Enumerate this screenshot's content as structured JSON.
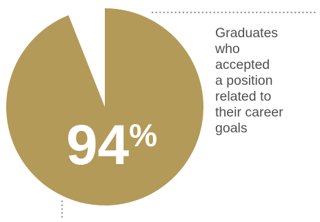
{
  "chart_data": {
    "type": "pie",
    "slices": [
      {
        "label": "Graduates who accepted a position related to their career goals",
        "value": 94,
        "color": "#b49a58"
      },
      {
        "label": "",
        "value": 6,
        "color": "#ffffff"
      }
    ],
    "center_label": {
      "number": "94",
      "unit": "%"
    },
    "caption": "Graduates\nwho\naccepted\na position\nrelated to\ntheir career\ngoals"
  },
  "colors": {
    "slice": "#b49a58",
    "text": "#4f4f4f",
    "leader_line": "#9a9a9a"
  }
}
